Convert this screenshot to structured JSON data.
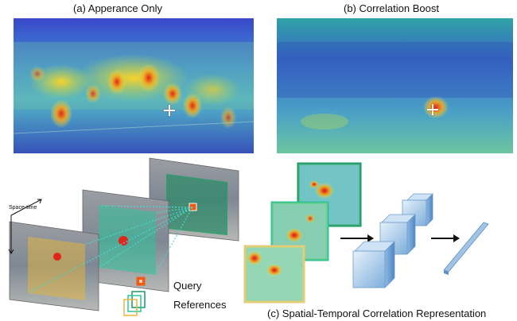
{
  "panels": {
    "appearance_title": "(a) Apperance Only",
    "correlation_title": "(b) Correlation Boost",
    "representation_title": "(c) Spatial-Temporal Correlation Representation"
  },
  "bottom": {
    "space_time_label": "Space-time",
    "query_label": "Query",
    "references_label": "References"
  },
  "colors": {
    "query": "#f05a12",
    "ref1": "#e6b63a",
    "ref2": "#2fc39a",
    "ref3": "#1a9a60",
    "arrow": "#111111",
    "cube": "#9fc4e6"
  }
}
